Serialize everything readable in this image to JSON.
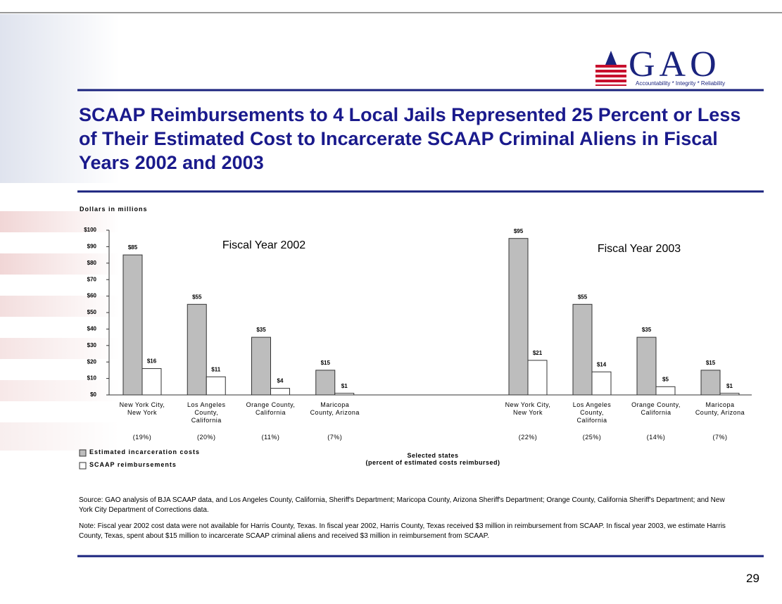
{
  "slide": {
    "logo": "GAO",
    "tagline": "Accountability * Integrity * Reliability",
    "title": "SCAAP Reimbursements to 4 Local Jails Represented 25 Percent or Less of Their Estimated Cost to Incarcerate SCAAP Criminal Aliens in Fiscal Years 2002 and 2003",
    "source": "Source: GAO analysis of BJA SCAAP data, and Los Angeles County, California, Sheriff's Department; Maricopa County, Arizona Sheriff's Department; Orange County, California Sheriff's Department; and New York City Department of Corrections data.",
    "note": "Note: Fiscal year 2002 cost data were not available for Harris County, Texas. In fiscal year 2002, Harris County, Texas received $3 million in reimbursement from SCAAP. In fiscal year 2003, we estimate Harris County, Texas, spent about $15 million to incarcerate SCAAP criminal aliens and received $3 million in reimbursement from SCAAP.",
    "page": "29"
  },
  "chart_data": [
    {
      "type": "bar",
      "title": "Fiscal Year 2002",
      "ylabel": "Dollars in millions",
      "xlabel": "Selected states\n(percent of estimated costs reimbursed)",
      "categories": [
        "New York City, New York",
        "Los Angeles County, California",
        "Orange County, California",
        "Maricopa County, Arizona"
      ],
      "category_notes": [
        "(19%)",
        "(20%)",
        "(11%)",
        "(7%)"
      ],
      "series": [
        {
          "name": "Estimated incarceration costs",
          "color": "#bdbdbd",
          "values": [
            85,
            55,
            35,
            15
          ],
          "value_labels": [
            "$85",
            "$55",
            "$35",
            "$15"
          ]
        },
        {
          "name": "SCAAP reimbursements",
          "color": "#ffffff",
          "values": [
            16,
            11,
            4,
            1
          ],
          "value_labels": [
            "$16",
            "$11",
            "$4",
            "$1"
          ]
        }
      ],
      "ylim": [
        0,
        100
      ],
      "yticks": [
        {
          "value": 0,
          "label": "$0"
        },
        {
          "value": 10,
          "label": "$10"
        },
        {
          "value": 20,
          "label": "$20"
        },
        {
          "value": 30,
          "label": "$30"
        },
        {
          "value": 40,
          "label": "$40"
        },
        {
          "value": 50,
          "label": "$50"
        },
        {
          "value": 60,
          "label": "$60"
        },
        {
          "value": 70,
          "label": "$70"
        },
        {
          "value": 80,
          "label": "$80"
        },
        {
          "value": 90,
          "label": "$90"
        },
        {
          "value": 100,
          "label": "$100"
        }
      ]
    },
    {
      "type": "bar",
      "title": "Fiscal Year 2003",
      "categories": [
        "New York City, New York",
        "Los Angeles County, California",
        "Orange County, California",
        "Maricopa County, Arizona"
      ],
      "category_notes": [
        "(22%)",
        "(25%)",
        "(14%)",
        "(7%)"
      ],
      "series": [
        {
          "color": "#bdbdbd",
          "values": [
            95,
            55,
            35,
            15
          ],
          "value_labels": [
            "$95",
            "$55",
            "$35",
            "$15"
          ]
        },
        {
          "color": "#ffffff",
          "values": [
            21,
            14,
            5,
            1
          ],
          "value_labels": [
            "$21",
            "$14",
            "$5",
            "$1"
          ]
        }
      ],
      "ylim": [
        0,
        100
      ]
    }
  ]
}
